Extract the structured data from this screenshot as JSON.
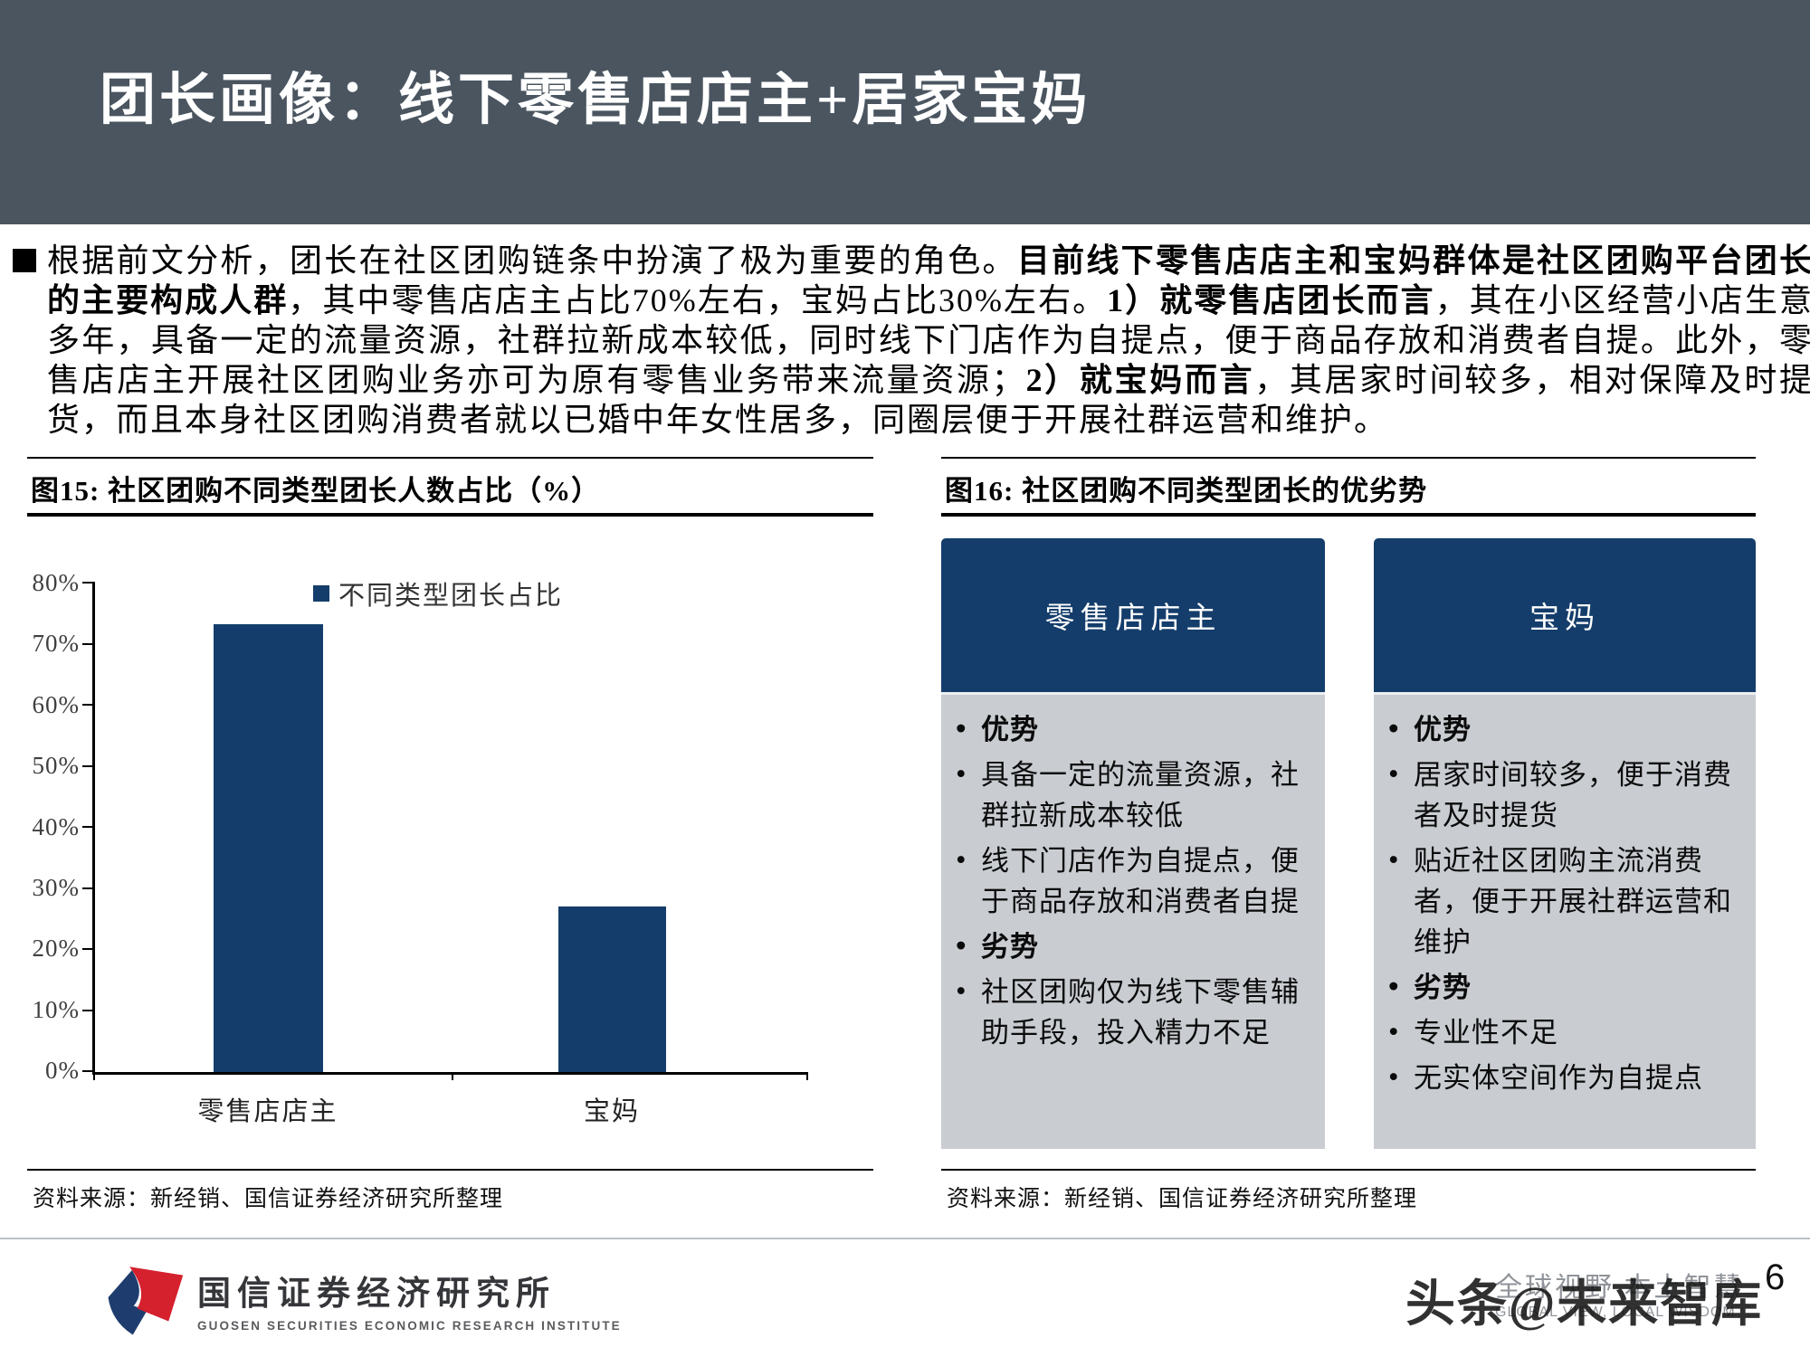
{
  "header": {
    "title": "团长画像：线下零售店店主+居家宝妈"
  },
  "body": {
    "segments": [
      {
        "text": "根据前文分析，团长在社区团购链条中扮演了极为重要的角色。",
        "bold": false
      },
      {
        "text": "目前线下零售店店主和宝妈群体是社区团购平台团长的主要构成人群",
        "bold": true
      },
      {
        "text": "，其中零售店店主占比70%左右，宝妈占比30%左右。",
        "bold": false
      },
      {
        "text": "1）就零售店团长而言",
        "bold": true
      },
      {
        "text": "，其在小区经营小店生意多年，具备一定的流量资源，社群拉新成本较低，同时线下门店作为自提点，便于商品存放和消费者自提。此外，零售店店主开展社区团购业务亦可为原有零售业务带来流量资源；",
        "bold": false
      },
      {
        "text": "2）就宝妈而言",
        "bold": true
      },
      {
        "text": "，其居家时间较多，相对保障及时提货，而且本身社区团购消费者就以已婚中年女性居多，同圈层便于开展社群运营和维护。",
        "bold": false
      }
    ]
  },
  "figures": {
    "fig15": {
      "title": "图15:  社区团购不同类型团长人数占比（%）",
      "source": "资料来源：新经销、国信证券经济研究所整理"
    },
    "fig16": {
      "title": "图16:  社区团购不同类型团长的优劣势",
      "source": "资料来源：新经销、国信证券经济研究所整理",
      "cards": [
        {
          "header": "零售店店主",
          "items": [
            {
              "text": "优势",
              "bold": true
            },
            {
              "text": "具备一定的流量资源，社群拉新成本较低",
              "bold": false
            },
            {
              "text": "线下门店作为自提点，便于商品存放和消费者自提",
              "bold": false
            },
            {
              "text": "劣势",
              "bold": true
            },
            {
              "text": "社区团购仅为线下零售辅助手段，投入精力不足",
              "bold": false
            }
          ]
        },
        {
          "header": "宝妈",
          "items": [
            {
              "text": "优势",
              "bold": true
            },
            {
              "text": "居家时间较多，便于消费者及时提货",
              "bold": false
            },
            {
              "text": "贴近社区团购主流消费者，便于开展社群运营和维护",
              "bold": false
            },
            {
              "text": "劣势",
              "bold": true
            },
            {
              "text": "专业性不足",
              "bold": false
            },
            {
              "text": "无实体空间作为自提点",
              "bold": false
            }
          ]
        }
      ]
    }
  },
  "chart_data": {
    "type": "bar",
    "title": "社区团购不同类型团长人数占比（%）",
    "categories": [
      "零售店店主",
      "宝妈"
    ],
    "values": [
      73,
      27
    ],
    "legend": "不同类型团长占比",
    "xlabel": "",
    "ylabel": "",
    "ylim": [
      0,
      80
    ],
    "yticks": [
      "80%",
      "70%",
      "60%",
      "50%",
      "40%",
      "30%",
      "20%",
      "10%",
      "0%"
    ],
    "grid": false,
    "legend_position": "top",
    "bar_color": "#143D6B"
  },
  "footer": {
    "logo": {
      "cn": "国信证券经济研究所",
      "en": "GUOSEN SECURITIES ECONOMIC RESEARCH INSTITUTE"
    },
    "slogan_cn": "全球视野 本土智慧",
    "slogan_en": "GLOBAL VIEW, LOCAL WISDOM",
    "watermark": "头条@未来智库",
    "page_number": "6"
  },
  "colors": {
    "header_bg": "#4A5560",
    "navy": "#143D6B",
    "card_body_bg": "#C9CDD2",
    "footer_divider": "#BCC0C4",
    "logo_red": "#D5202E",
    "logo_blue": "#1E3D6E",
    "slogan_gray": "#8F9399"
  }
}
